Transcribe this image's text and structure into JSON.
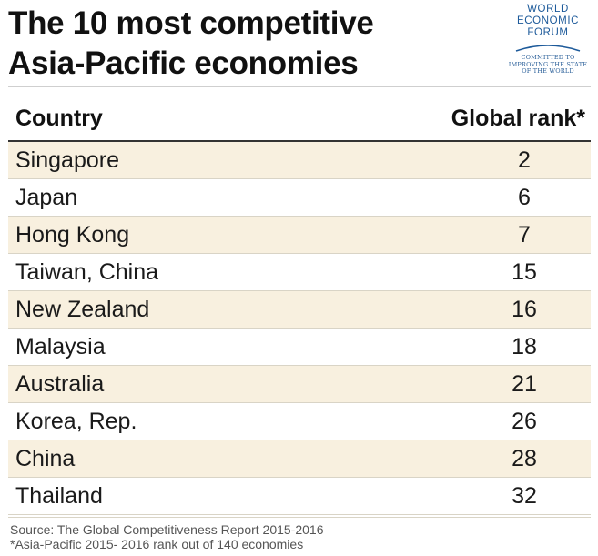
{
  "title": {
    "line1": "The 10 most competitive",
    "line2": "Asia-Pacific economies"
  },
  "logo": {
    "org_line1": "WORLD",
    "org_line2": "ECONOMIC",
    "org_line3": "FORUM",
    "motto_line1": "COMMITTED TO",
    "motto_line2": "IMPROVING THE STATE",
    "motto_line3": "OF THE WORLD"
  },
  "chart_data": {
    "type": "table",
    "title": "The 10 most competitive Asia-Pacific economies",
    "columns": [
      "Country",
      "Global rank*"
    ],
    "rows": [
      {
        "country": "Singapore",
        "rank": 2
      },
      {
        "country": "Japan",
        "rank": 6
      },
      {
        "country": "Hong Kong",
        "rank": 7
      },
      {
        "country": "Taiwan, China",
        "rank": 15
      },
      {
        "country": "New Zealand",
        "rank": 16
      },
      {
        "country": "Malaysia",
        "rank": 18
      },
      {
        "country": "Australia",
        "rank": 21
      },
      {
        "country": "Korea, Rep.",
        "rank": 26
      },
      {
        "country": "China",
        "rank": 28
      },
      {
        "country": "Thailand",
        "rank": 32
      }
    ]
  },
  "footnotes": {
    "source": "Source: The Global Competitiveness Report 2015-2016",
    "note": "*Asia-Pacific 2015- 2016 rank out of 140 economies"
  },
  "colors": {
    "row_shade": "#f8f0df",
    "logo_blue": "#1d5a9a"
  }
}
